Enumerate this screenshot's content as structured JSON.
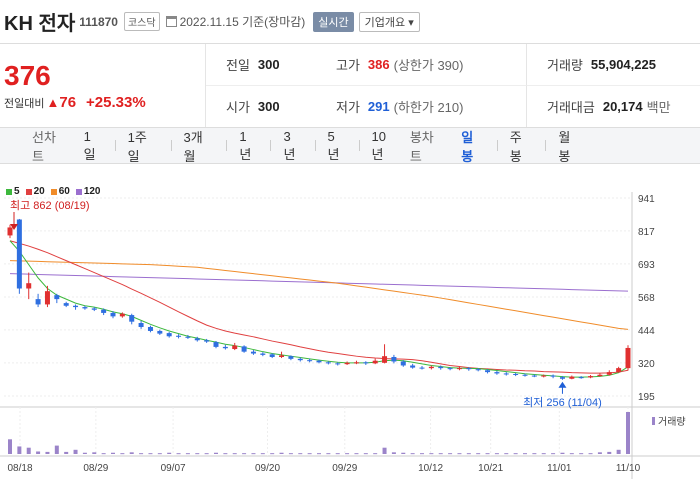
{
  "header": {
    "name": "KH 전자",
    "code": "111870",
    "market": "코스닥",
    "date": "2022.11.15 기준(장마감)",
    "realtime_label": "실시간",
    "company_label": "기업개요 ▾"
  },
  "quote": {
    "price": "376",
    "change_label": "전일대비",
    "change_icon": "▲",
    "change": "76",
    "change_pct": "+25.33%",
    "prev_label": "전일",
    "prev": "300",
    "high_label": "고가",
    "high": "386",
    "upper_limit": "(상한가 390)",
    "volume_label": "거래량",
    "volume": "55,904,225",
    "open_label": "시가",
    "open": "300",
    "low_label": "저가",
    "low": "291",
    "lower_limit": "(하한가 210)",
    "amount_label": "거래대금",
    "amount": "20,174",
    "amount_unit": "백만"
  },
  "tabs": {
    "line_label": "선차트",
    "line_items": [
      "1일",
      "1주일",
      "3개월",
      "1년",
      "3년",
      "5년",
      "10년"
    ],
    "candle_label": "봉차트",
    "candle_items": [
      "일봉",
      "주봉",
      "월봉"
    ]
  },
  "legend": [
    {
      "name": "5",
      "color": "#3db83d"
    },
    {
      "name": "20",
      "color": "#e04040"
    },
    {
      "name": "60",
      "color": "#f08c2a"
    },
    {
      "name": "120",
      "color": "#9b6fcf"
    }
  ],
  "chart_data": {
    "type": "line",
    "y_ticks": [
      "941",
      "817",
      "693",
      "568",
      "444",
      "320",
      "195"
    ],
    "x_ticks": [
      "08/18",
      "08/29",
      "09/07",
      "09/20",
      "09/29",
      "10/12",
      "10/21",
      "11/01",
      "11/10"
    ],
    "max_annotation": "최고 862 (08/19)",
    "min_annotation": "최저 256 (11/04)",
    "volume_label": "거래량",
    "candles": [
      {
        "o": 800,
        "c": 830,
        "h": 840,
        "l": 790
      },
      {
        "o": 860,
        "c": 600,
        "h": 862,
        "l": 580
      },
      {
        "o": 600,
        "c": 620,
        "h": 660,
        "l": 560
      },
      {
        "o": 560,
        "c": 540,
        "h": 580,
        "l": 530
      },
      {
        "o": 540,
        "c": 590,
        "h": 610,
        "l": 530
      },
      {
        "o": 575,
        "c": 560,
        "h": 580,
        "l": 545
      },
      {
        "o": 545,
        "c": 535,
        "h": 550,
        "l": 530
      },
      {
        "o": 535,
        "c": 530,
        "h": 540,
        "l": 520
      },
      {
        "o": 530,
        "c": 525,
        "h": 535,
        "l": 520
      },
      {
        "o": 525,
        "c": 520,
        "h": 530,
        "l": 515
      },
      {
        "o": 520,
        "c": 508,
        "h": 525,
        "l": 500
      },
      {
        "o": 508,
        "c": 495,
        "h": 515,
        "l": 488
      },
      {
        "o": 495,
        "c": 505,
        "h": 510,
        "l": 490
      },
      {
        "o": 500,
        "c": 475,
        "h": 505,
        "l": 465
      },
      {
        "o": 470,
        "c": 455,
        "h": 478,
        "l": 448
      },
      {
        "o": 455,
        "c": 440,
        "h": 460,
        "l": 435
      },
      {
        "o": 440,
        "c": 430,
        "h": 445,
        "l": 425
      },
      {
        "o": 432,
        "c": 420,
        "h": 436,
        "l": 415
      },
      {
        "o": 422,
        "c": 418,
        "h": 428,
        "l": 412
      },
      {
        "o": 418,
        "c": 415,
        "h": 425,
        "l": 410
      },
      {
        "o": 412,
        "c": 405,
        "h": 418,
        "l": 400
      },
      {
        "o": 405,
        "c": 400,
        "h": 410,
        "l": 395
      },
      {
        "o": 398,
        "c": 380,
        "h": 402,
        "l": 375
      },
      {
        "o": 380,
        "c": 375,
        "h": 388,
        "l": 370
      },
      {
        "o": 372,
        "c": 385,
        "h": 395,
        "l": 368
      },
      {
        "o": 382,
        "c": 362,
        "h": 386,
        "l": 358
      },
      {
        "o": 362,
        "c": 355,
        "h": 368,
        "l": 350
      },
      {
        "o": 355,
        "c": 350,
        "h": 360,
        "l": 345
      },
      {
        "o": 352,
        "c": 342,
        "h": 356,
        "l": 338
      },
      {
        "o": 342,
        "c": 348,
        "h": 362,
        "l": 338
      },
      {
        "o": 345,
        "c": 335,
        "h": 348,
        "l": 330
      },
      {
        "o": 335,
        "c": 330,
        "h": 340,
        "l": 325
      },
      {
        "o": 330,
        "c": 328,
        "h": 336,
        "l": 322
      },
      {
        "o": 328,
        "c": 322,
        "h": 332,
        "l": 318
      },
      {
        "o": 322,
        "c": 318,
        "h": 326,
        "l": 314
      },
      {
        "o": 318,
        "c": 315,
        "h": 322,
        "l": 310
      },
      {
        "o": 315,
        "c": 320,
        "h": 325,
        "l": 312
      },
      {
        "o": 318,
        "c": 322,
        "h": 328,
        "l": 315
      },
      {
        "o": 322,
        "c": 318,
        "h": 326,
        "l": 312
      },
      {
        "o": 318,
        "c": 328,
        "h": 336,
        "l": 315
      },
      {
        "o": 320,
        "c": 345,
        "h": 390,
        "l": 318
      },
      {
        "o": 342,
        "c": 325,
        "h": 350,
        "l": 318
      },
      {
        "o": 325,
        "c": 310,
        "h": 330,
        "l": 305
      },
      {
        "o": 310,
        "c": 302,
        "h": 316,
        "l": 298
      },
      {
        "o": 302,
        "c": 300,
        "h": 308,
        "l": 295
      },
      {
        "o": 300,
        "c": 305,
        "h": 310,
        "l": 295
      },
      {
        "o": 305,
        "c": 300,
        "h": 310,
        "l": 294
      },
      {
        "o": 300,
        "c": 298,
        "h": 304,
        "l": 292
      },
      {
        "o": 298,
        "c": 300,
        "h": 305,
        "l": 292
      },
      {
        "o": 300,
        "c": 296,
        "h": 304,
        "l": 290
      },
      {
        "o": 296,
        "c": 292,
        "h": 300,
        "l": 288
      },
      {
        "o": 292,
        "c": 285,
        "h": 296,
        "l": 280
      },
      {
        "o": 285,
        "c": 280,
        "h": 290,
        "l": 275
      },
      {
        "o": 280,
        "c": 278,
        "h": 285,
        "l": 272
      },
      {
        "o": 278,
        "c": 275,
        "h": 282,
        "l": 270
      },
      {
        "o": 275,
        "c": 272,
        "h": 280,
        "l": 268
      },
      {
        "o": 272,
        "c": 270,
        "h": 276,
        "l": 266
      },
      {
        "o": 270,
        "c": 272,
        "h": 276,
        "l": 265
      },
      {
        "o": 272,
        "c": 268,
        "h": 276,
        "l": 262
      },
      {
        "o": 266,
        "c": 260,
        "h": 270,
        "l": 256
      },
      {
        "o": 260,
        "c": 268,
        "h": 272,
        "l": 258
      },
      {
        "o": 266,
        "c": 265,
        "h": 270,
        "l": 260
      },
      {
        "o": 265,
        "c": 270,
        "h": 274,
        "l": 262
      },
      {
        "o": 270,
        "c": 275,
        "h": 280,
        "l": 268
      },
      {
        "o": 275,
        "c": 285,
        "h": 292,
        "l": 272
      },
      {
        "o": 285,
        "c": 300,
        "h": 305,
        "l": 282
      },
      {
        "o": 300,
        "c": 376,
        "h": 386,
        "l": 291
      }
    ],
    "ma5": [
      780,
      740,
      690,
      640,
      600,
      575,
      560,
      545,
      535,
      530,
      522,
      512,
      505,
      495,
      480,
      465,
      452,
      440,
      430,
      420,
      413,
      405,
      398,
      390,
      385,
      378,
      370,
      362,
      355,
      350,
      345,
      340,
      335,
      330,
      326,
      322,
      320,
      320,
      320,
      322,
      328,
      330,
      328,
      322,
      316,
      310,
      306,
      302,
      300,
      299,
      298,
      295,
      291,
      287,
      283,
      279,
      276,
      273,
      271,
      268,
      266,
      266,
      267,
      269,
      273,
      283,
      305
    ],
    "ma20": [
      780,
      770,
      760,
      748,
      735,
      720,
      705,
      690,
      675,
      660,
      645,
      630,
      615,
      598,
      582,
      565,
      548,
      530,
      512,
      495,
      478,
      462,
      450,
      440,
      432,
      425,
      418,
      410,
      402,
      395,
      388,
      380,
      373,
      366,
      360,
      355,
      350,
      345,
      341,
      338,
      336,
      335,
      334,
      332,
      328,
      322,
      316,
      310,
      306,
      302,
      299,
      297,
      295,
      293,
      292,
      290,
      289,
      287,
      286,
      285,
      283,
      282,
      281,
      281,
      282,
      285,
      292
    ],
    "ma60": [
      705,
      704,
      703,
      702,
      701,
      700,
      699,
      698,
      697,
      696,
      695,
      694,
      693,
      692,
      691,
      690,
      688,
      686,
      684,
      682,
      680,
      676,
      672,
      668,
      664,
      660,
      656,
      652,
      648,
      644,
      640,
      636,
      632,
      628,
      624,
      620,
      615,
      610,
      605,
      600,
      595,
      590,
      585,
      580,
      575,
      570,
      564,
      558,
      552,
      546,
      540,
      534,
      528,
      522,
      516,
      510,
      504,
      498,
      492,
      486,
      480,
      474,
      468,
      462,
      456,
      450,
      446
    ],
    "ma120": [
      656,
      655,
      654,
      653,
      652,
      651,
      650,
      649,
      648,
      647,
      646,
      645,
      644,
      643,
      642,
      641,
      640,
      639,
      638,
      637,
      636,
      635,
      634,
      633,
      632,
      631,
      630,
      629,
      628,
      627,
      626,
      625,
      624,
      623,
      622,
      621,
      620,
      619,
      618,
      617,
      616,
      615,
      614,
      613,
      612,
      611,
      610,
      609,
      608,
      607,
      606,
      605,
      604,
      603,
      602,
      601,
      600,
      599,
      598,
      597,
      596,
      595,
      594,
      593,
      592,
      591,
      590
    ],
    "volume": [
      0.35,
      0.18,
      0.15,
      0.06,
      0.05,
      0.2,
      0.05,
      0.1,
      0.03,
      0.04,
      0.02,
      0.03,
      0.02,
      0.04,
      0.02,
      0.02,
      0.02,
      0.03,
      0.02,
      0.02,
      0.02,
      0.02,
      0.03,
      0.02,
      0.02,
      0.02,
      0.02,
      0.02,
      0.02,
      0.03,
      0.02,
      0.02,
      0.02,
      0.02,
      0.02,
      0.02,
      0.02,
      0.02,
      0.02,
      0.02,
      0.15,
      0.04,
      0.03,
      0.02,
      0.02,
      0.02,
      0.02,
      0.02,
      0.02,
      0.02,
      0.02,
      0.02,
      0.02,
      0.02,
      0.02,
      0.02,
      0.02,
      0.02,
      0.02,
      0.03,
      0.02,
      0.02,
      0.02,
      0.04,
      0.05,
      0.1,
      1.0
    ]
  }
}
